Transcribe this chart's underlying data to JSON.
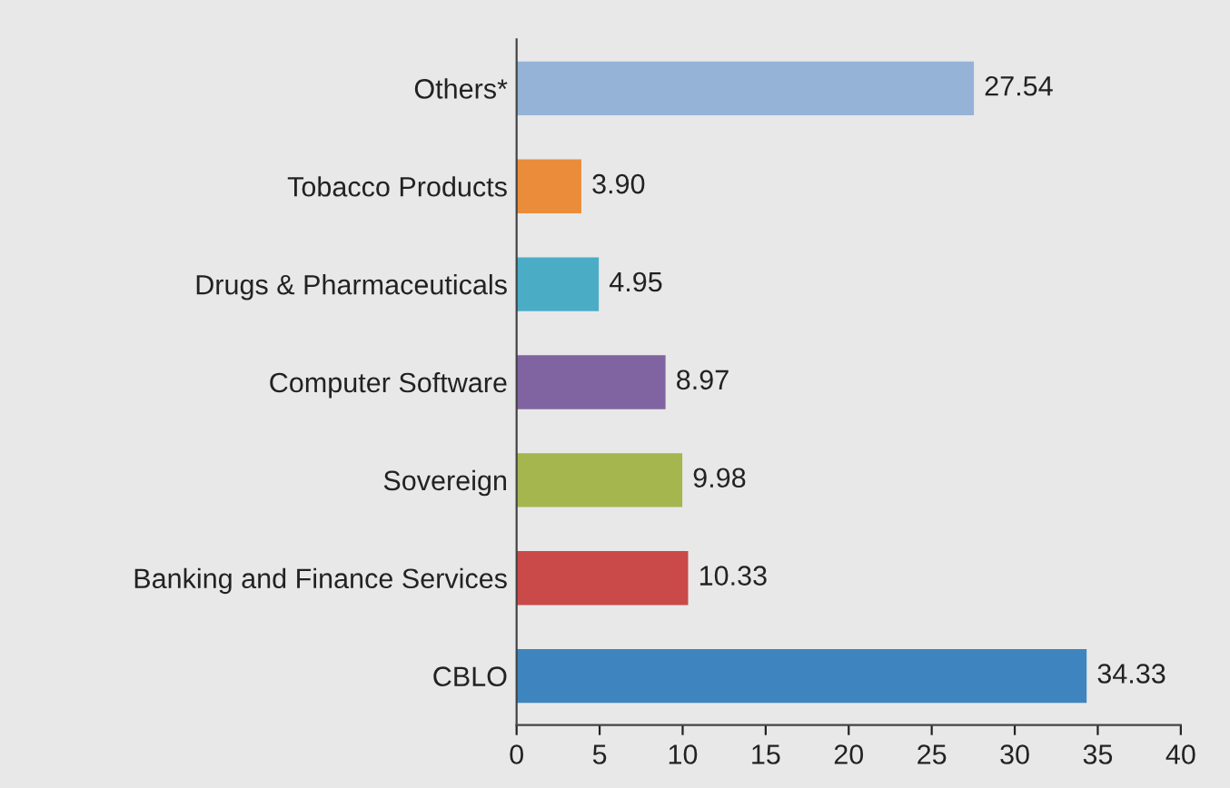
{
  "chart_data": {
    "type": "bar",
    "orientation": "horizontal",
    "categories": [
      "Others*",
      "Tobacco Products",
      "Drugs & Pharmaceuticals",
      "Computer Software",
      "Sovereign",
      "Banking and Finance Services",
      "CBLO"
    ],
    "values": [
      27.54,
      3.9,
      4.95,
      8.97,
      9.98,
      10.33,
      34.33
    ],
    "value_labels": [
      "27.54",
      "3.90",
      "4.95",
      "8.97",
      "9.98",
      "10.33",
      "34.33"
    ],
    "colors": [
      "#95b3d7",
      "#eb8c3b",
      "#4bacc6",
      "#8064a2",
      "#a5b64f",
      "#c94a48",
      "#3e85bf"
    ],
    "xlim": [
      0,
      40
    ],
    "xticks": [
      0,
      5,
      10,
      15,
      20,
      25,
      30,
      35,
      40
    ],
    "grid": false,
    "legend": false
  }
}
